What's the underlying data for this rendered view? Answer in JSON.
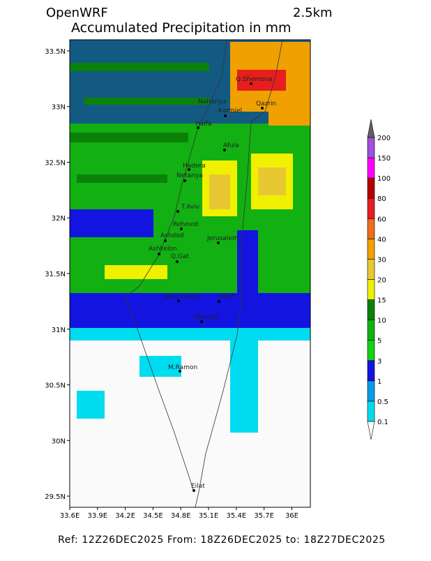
{
  "header": {
    "model": "OpenWRF",
    "resolution": "2.5km",
    "title": "Accumulated Precipitation in mm"
  },
  "map": {
    "xlim": [
      33.6,
      36.2
    ],
    "ylim": [
      29.4,
      33.6
    ],
    "xticks": [
      {
        "value": 33.6,
        "label": "33.6E"
      },
      {
        "value": 33.9,
        "label": "33.9E"
      },
      {
        "value": 34.2,
        "label": "34.2E"
      },
      {
        "value": 34.5,
        "label": "34.5E"
      },
      {
        "value": 34.8,
        "label": "34.8E"
      },
      {
        "value": 35.1,
        "label": "35.1E"
      },
      {
        "value": 35.4,
        "label": "35.4E"
      },
      {
        "value": 35.7,
        "label": "35.7E"
      },
      {
        "value": 36,
        "label": "36E"
      }
    ],
    "yticks": [
      {
        "value": 33.5,
        "label": "33.5N"
      },
      {
        "value": 33,
        "label": "33N"
      },
      {
        "value": 32.5,
        "label": "32.5N"
      },
      {
        "value": 32,
        "label": "32N"
      },
      {
        "value": 31.5,
        "label": "31.5N"
      },
      {
        "value": 31,
        "label": "31N"
      },
      {
        "value": 30.5,
        "label": "30.5N"
      },
      {
        "value": 30,
        "label": "30N"
      },
      {
        "value": 29.5,
        "label": "29.5N"
      }
    ],
    "cities": [
      "Q.Shemona",
      "Nahariya",
      "Karmiel",
      "Qazrin",
      "Haifa",
      "Afula",
      "Hadera",
      "Netanya",
      "T.Aviv",
      "Rehovot",
      "Ashdod",
      "Ashkelon",
      "Q.Gat",
      "Jerusalem",
      "Beer-Sheva",
      "Arad",
      "Dimona",
      "M.Ramon",
      "Eilat"
    ]
  },
  "colorbar": {
    "levels": [
      0.1,
      0.5,
      1,
      3,
      5,
      10,
      15,
      20,
      30,
      40,
      60,
      80,
      100,
      150,
      200
    ],
    "colors": [
      "#ffffff",
      "#00dcef",
      "#0a9be6",
      "#1414e0",
      "#14d214",
      "#12b012",
      "#0a820a",
      "#f0f000",
      "#e8c832",
      "#f0a000",
      "#f06c1e",
      "#e61e1e",
      "#b40000",
      "#ff00ff",
      "#a050dc",
      "#606060"
    ]
  },
  "footer": {
    "ref": "Ref: 12Z26DEC2025  From: 18Z26DEC2025  to: 18Z27DEC2025"
  }
}
